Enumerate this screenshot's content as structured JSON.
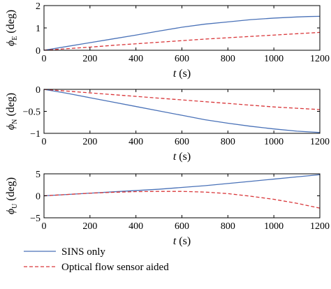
{
  "chart_data": [
    {
      "type": "line",
      "ylabel": {
        "symbol": "ϕ",
        "sub": "E",
        "unit": " (deg)"
      },
      "xlabel": {
        "var": "t",
        "unit": " (s)"
      },
      "xlim": [
        0,
        1200
      ],
      "ylim": [
        0,
        2
      ],
      "xticks": [
        "0",
        "200",
        "400",
        "600",
        "800",
        "1000",
        "1200"
      ],
      "yticks": [
        "0",
        "1",
        "2"
      ],
      "ytick_values": [
        0,
        1,
        2
      ],
      "x": [
        0,
        100,
        200,
        300,
        400,
        500,
        600,
        700,
        800,
        900,
        1000,
        1100,
        1150,
        1200
      ],
      "series": [
        {
          "key": "sins",
          "values": [
            0,
            0.17,
            0.34,
            0.51,
            0.68,
            0.86,
            1.03,
            1.17,
            1.27,
            1.37,
            1.44,
            1.49,
            1.51,
            1.52
          ]
        },
        {
          "key": "flow",
          "values": [
            0,
            0.07,
            0.14,
            0.22,
            0.29,
            0.36,
            0.43,
            0.5,
            0.56,
            0.62,
            0.68,
            0.74,
            0.77,
            0.8
          ]
        }
      ]
    },
    {
      "type": "line",
      "ylabel": {
        "symbol": "ϕ",
        "sub": "N",
        "unit": " (deg)"
      },
      "xlabel": {
        "var": "t",
        "unit": " (s)"
      },
      "xlim": [
        0,
        1200
      ],
      "ylim": [
        -1,
        0
      ],
      "xticks": [
        "0",
        "200",
        "400",
        "600",
        "800",
        "1000",
        "1200"
      ],
      "yticks": [
        "0",
        "−0.5",
        "−1"
      ],
      "ytick_values": [
        0,
        -0.5,
        -1
      ],
      "x": [
        0,
        100,
        200,
        300,
        400,
        500,
        600,
        700,
        800,
        900,
        1000,
        1100,
        1200
      ],
      "series": [
        {
          "key": "sins",
          "values": [
            0,
            -0.09,
            -0.19,
            -0.29,
            -0.39,
            -0.49,
            -0.59,
            -0.69,
            -0.77,
            -0.84,
            -0.9,
            -0.95,
            -0.98
          ]
        },
        {
          "key": "flow",
          "values": [
            0,
            -0.04,
            -0.08,
            -0.12,
            -0.16,
            -0.2,
            -0.24,
            -0.28,
            -0.32,
            -0.36,
            -0.4,
            -0.43,
            -0.46
          ]
        }
      ]
    },
    {
      "type": "line",
      "ylabel": {
        "symbol": "ϕ",
        "sub": "U",
        "unit": " (deg)"
      },
      "xlabel": {
        "var": "t",
        "unit": " (s)"
      },
      "xlim": [
        0,
        1200
      ],
      "ylim": [
        -5,
        5
      ],
      "xticks": [
        "0",
        "200",
        "400",
        "600",
        "800",
        "1000",
        "1200"
      ],
      "yticks": [
        "5",
        "0",
        "−5"
      ],
      "ytick_values": [
        5,
        0,
        -5
      ],
      "x": [
        0,
        100,
        200,
        300,
        400,
        500,
        600,
        700,
        800,
        900,
        1000,
        1100,
        1200
      ],
      "series": [
        {
          "key": "sins",
          "values": [
            0,
            0.3,
            0.6,
            0.9,
            1.2,
            1.5,
            1.9,
            2.3,
            2.8,
            3.3,
            3.8,
            4.3,
            4.8
          ]
        },
        {
          "key": "flow",
          "values": [
            0,
            0.3,
            0.6,
            0.8,
            0.95,
            1.0,
            1.0,
            0.85,
            0.5,
            -0.1,
            -0.8,
            -1.7,
            -2.8
          ]
        }
      ]
    }
  ],
  "legend": {
    "placement": "bottom-left",
    "items": [
      {
        "key": "sins",
        "label": "SINS only",
        "color": "#4a72b8",
        "dash": "solid"
      },
      {
        "key": "flow",
        "label": "Optical flow sensor aided",
        "color": "#d9373a",
        "dash": "dashed"
      }
    ]
  }
}
